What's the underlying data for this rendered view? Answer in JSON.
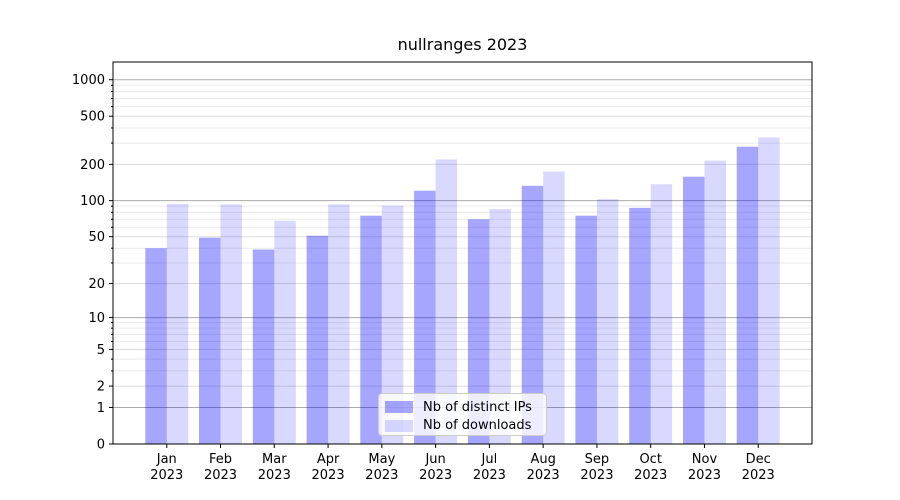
{
  "chart_data": {
    "type": "bar",
    "title": "nullranges 2023",
    "categories": [
      "Jan",
      "Feb",
      "Mar",
      "Apr",
      "May",
      "Jun",
      "Jul",
      "Aug",
      "Sep",
      "Oct",
      "Nov",
      "Dec"
    ],
    "year_label": "2023",
    "series": [
      {
        "name": "Nb of distinct IPs",
        "color": "rgba(0,0,255,0.35)",
        "values": [
          40,
          49,
          39,
          51,
          75,
          121,
          70,
          133,
          75,
          87,
          158,
          280
        ]
      },
      {
        "name": "Nb of downloads",
        "color": "rgba(0,0,255,0.15)",
        "values": [
          94,
          93,
          68,
          93,
          91,
          220,
          85,
          175,
          103,
          137,
          215,
          334
        ]
      }
    ],
    "yscale": "symlog",
    "yticks": [
      0,
      1,
      2,
      5,
      10,
      20,
      50,
      100,
      200,
      500,
      1000
    ],
    "ytick_labels": [
      "0",
      "1",
      "2",
      "5",
      "10",
      "20",
      "50",
      "100",
      "200",
      "500",
      "1000"
    ],
    "ylim": [
      0,
      1400
    ],
    "grid": true,
    "legend": {
      "entries": [
        "Nb of distinct IPs",
        "Nb of downloads"
      ],
      "position": "lower-center-inside"
    },
    "colors": {
      "grid_major": "#ababab",
      "grid_mid": "#dddddd",
      "grid_minor": "#e9e9e9",
      "spine": "#000000",
      "text": "#000000",
      "background": "#ffffff"
    }
  }
}
